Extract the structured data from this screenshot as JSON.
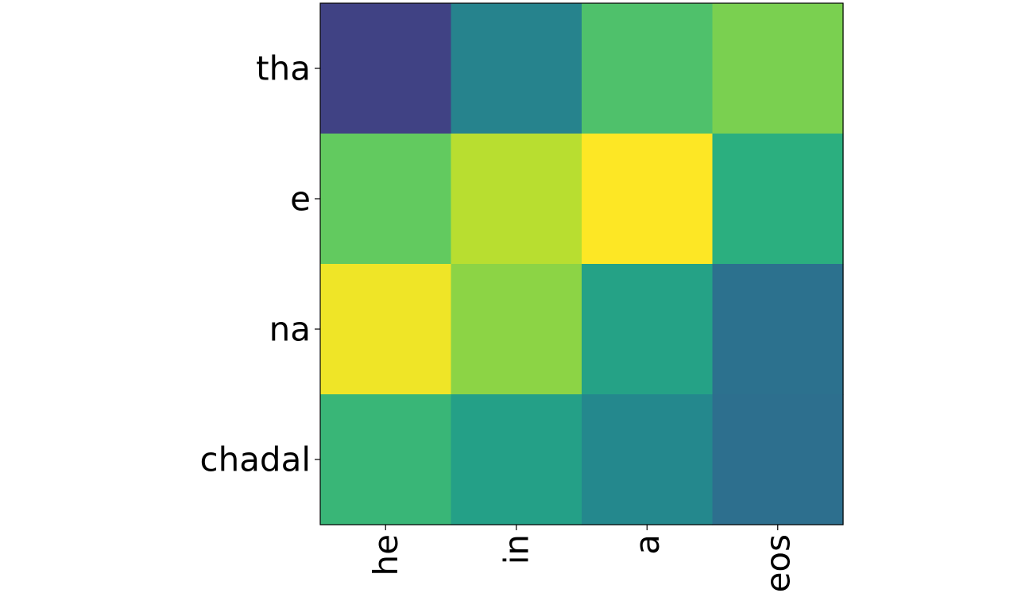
{
  "chart_data": {
    "type": "heatmap",
    "title": "",
    "xlabel": "",
    "ylabel": "",
    "x_categories": [
      "he",
      "in",
      "a",
      "eos"
    ],
    "y_categories": [
      "tha",
      "e",
      "na",
      "chadal"
    ],
    "values": [
      [
        0.2,
        0.45,
        0.72,
        0.8
      ],
      [
        0.76,
        0.9,
        1.0,
        0.64
      ],
      [
        0.98,
        0.83,
        0.58,
        0.38
      ],
      [
        0.67,
        0.57,
        0.47,
        0.37
      ]
    ],
    "colormap": "viridis",
    "x_tick_rotation": "vertical",
    "grid": false,
    "colorbar": false
  }
}
